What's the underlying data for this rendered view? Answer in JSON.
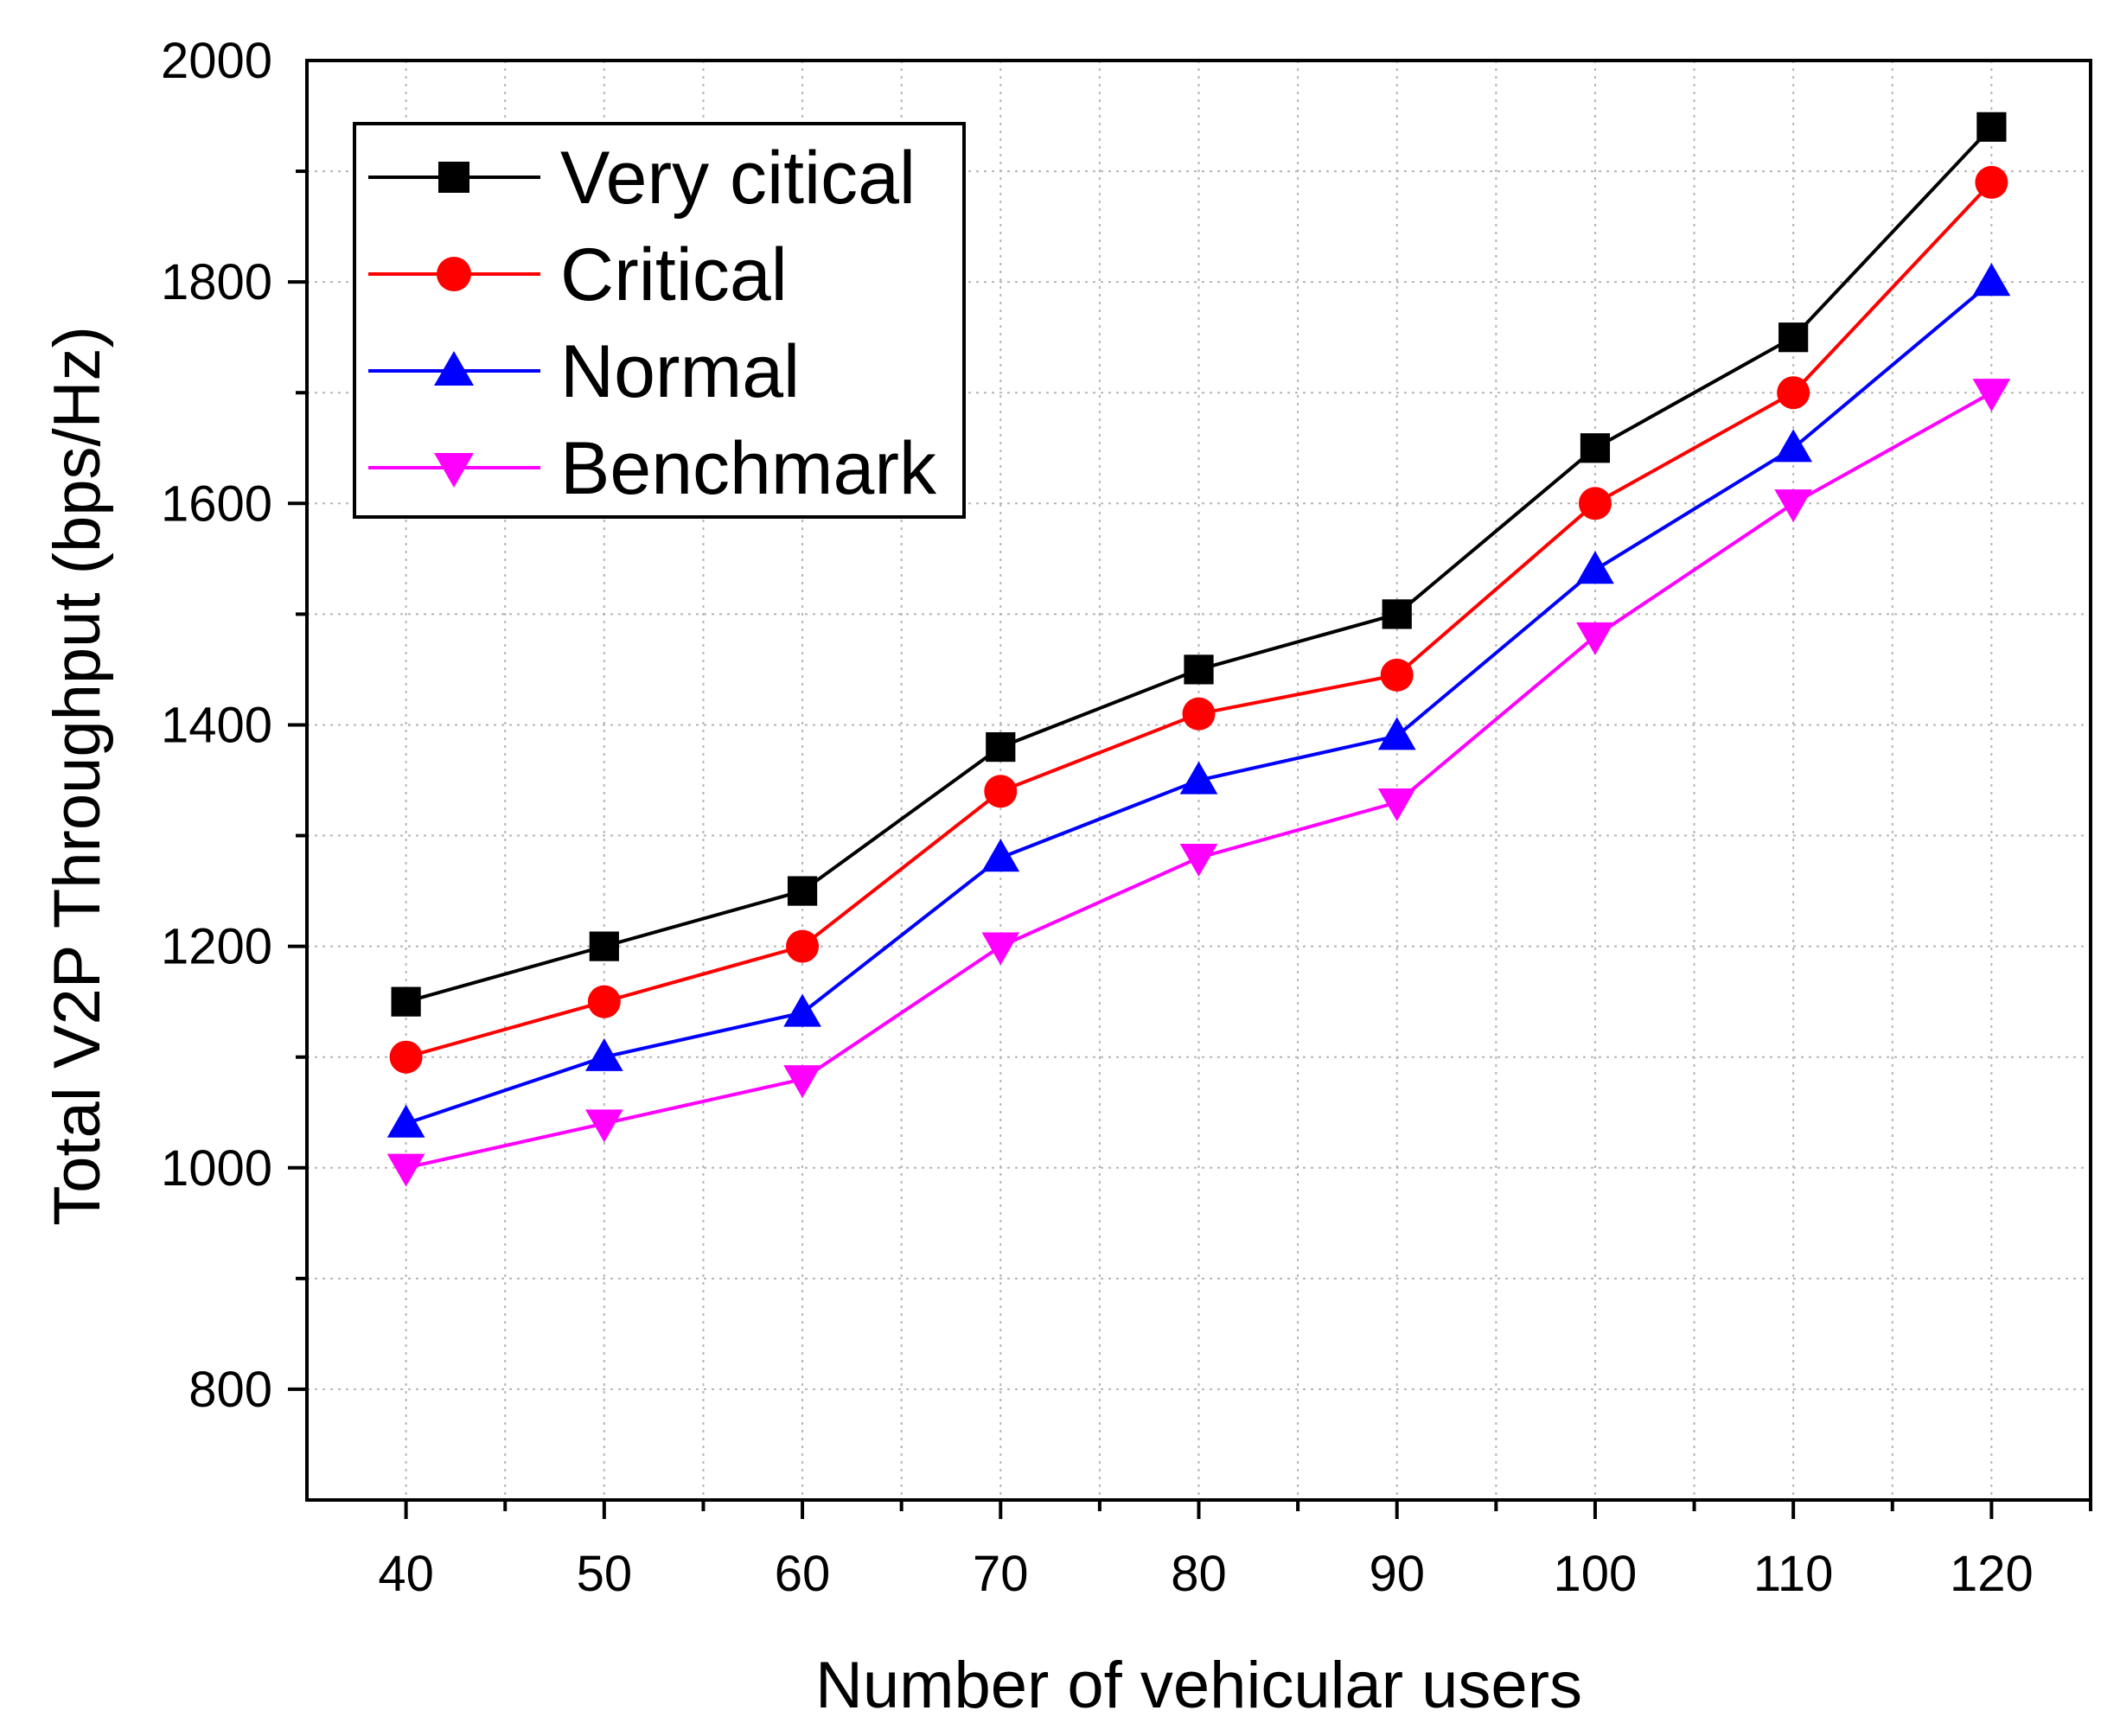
{
  "chart_data": {
    "type": "line",
    "title": "",
    "xlabel": "Number of vehicular users",
    "ylabel": "Total V2P Throughput (bps/Hz)",
    "x": [
      40,
      50,
      60,
      70,
      80,
      90,
      100,
      110,
      120
    ],
    "xlim": [
      35,
      125
    ],
    "ylim": [
      700,
      2000
    ],
    "xticks": [
      40,
      50,
      60,
      70,
      80,
      90,
      100,
      110,
      120
    ],
    "yticks": [
      800,
      1000,
      1200,
      1400,
      1600,
      1800,
      2000
    ],
    "grid": true,
    "legend_position": "top-left",
    "series": [
      {
        "name": "Very citical",
        "color": "#000000",
        "marker": "square",
        "values": [
          1150,
          1200,
          1250,
          1380,
          1450,
          1500,
          1650,
          1750,
          1940
        ]
      },
      {
        "name": "Critical",
        "color": "#ff0000",
        "marker": "circle",
        "values": [
          1100,
          1150,
          1200,
          1340,
          1410,
          1445,
          1600,
          1700,
          1890
        ]
      },
      {
        "name": "Normal",
        "color": "#0000ff",
        "marker": "triangle-up",
        "values": [
          1040,
          1100,
          1140,
          1280,
          1350,
          1390,
          1540,
          1650,
          1800
        ]
      },
      {
        "name": "Benchmark",
        "color": "#ff00ff",
        "marker": "triangle-down",
        "values": [
          1000,
          1040,
          1080,
          1200,
          1280,
          1330,
          1480,
          1600,
          1700
        ]
      }
    ]
  }
}
